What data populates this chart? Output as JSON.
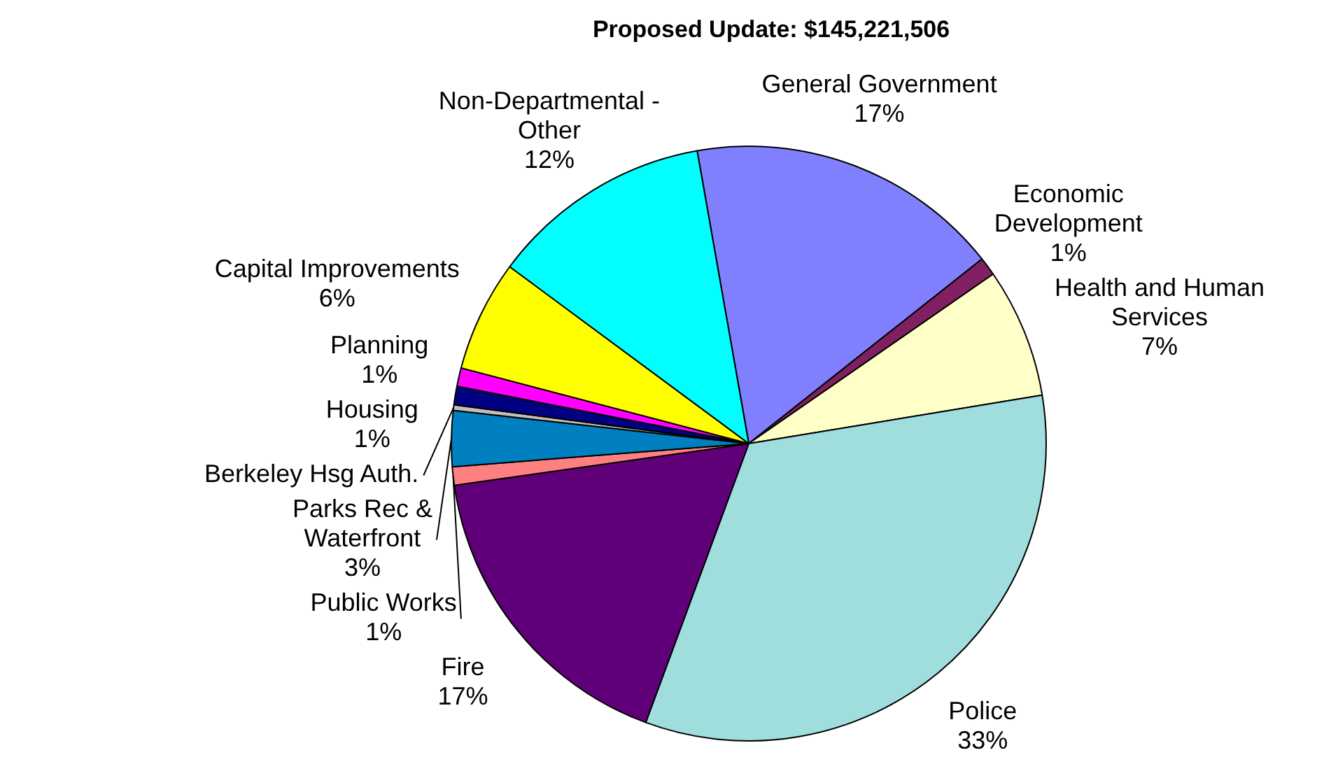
{
  "chart_data": {
    "type": "pie",
    "title": "Proposed Update: $145,221,506",
    "categories": [
      "General Government",
      "Economic Development",
      "Health and Human Services",
      "Police",
      "Fire",
      "Public Works",
      "Parks Rec & Waterfront",
      "Berkeley Hsg Auth.",
      "Housing",
      "Planning",
      "Capital Improvements",
      "Non-Departmental - Other"
    ],
    "values": [
      17,
      1,
      7,
      33,
      17,
      1,
      3,
      0.3,
      1,
      1,
      6,
      12
    ],
    "value_labels": [
      "17%",
      "1%",
      "7%",
      "33%",
      "17%",
      "1%",
      "3%",
      null,
      "1%",
      "1%",
      "6%",
      "12%"
    ],
    "colors": [
      "#8080ff",
      "#802060",
      "#ffffc8",
      "#a0dede",
      "#600078",
      "#ff8080",
      "#0080c0",
      "#c0c0c0",
      "#000080",
      "#ff00ff",
      "#ffff00",
      "#00ffff"
    ]
  }
}
